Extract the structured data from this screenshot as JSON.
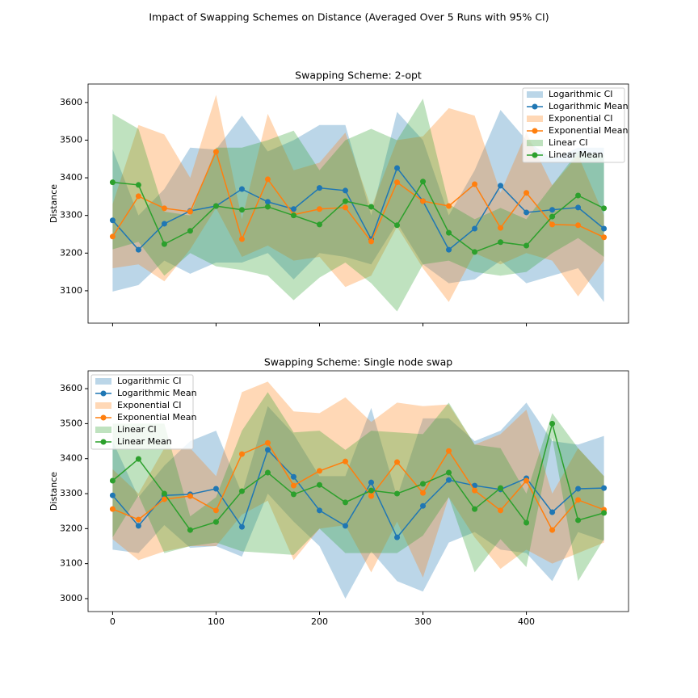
{
  "title": "Impact of Swapping Schemes on Distance (Averaged Over 5 Runs with 95% CI)",
  "chart_data": [
    {
      "type": "line",
      "title": "Swapping Scheme: 2-opt",
      "ylabel": "Distance",
      "x": [
        0,
        25,
        50,
        75,
        100,
        125,
        150,
        175,
        200,
        225,
        250,
        275,
        300,
        325,
        350,
        375,
        400,
        425,
        450,
        475
      ],
      "xlim": [
        -23.75,
        498.75
      ],
      "xticks": [
        0,
        100,
        200,
        300,
        400
      ],
      "show_xtick_labels": false,
      "ylim": [
        3014,
        3649
      ],
      "yticks": [
        3100,
        3200,
        3300,
        3400,
        3500,
        3600
      ],
      "legend": "upper right",
      "grid": false,
      "series": [
        {
          "name": "Logarithmic Mean",
          "ci_name": "Logarithmic CI",
          "color": "#1f77b4",
          "values": [
            3287,
            3209,
            3278,
            3312,
            3325,
            3370,
            3336,
            3317,
            3373,
            3366,
            3237,
            3426,
            3338,
            3209,
            3265,
            3379,
            3308,
            3315,
            3321,
            3265
          ],
          "ci_upper": [
            3476,
            3300,
            3370,
            3480,
            3475,
            3565,
            3470,
            3500,
            3540,
            3540,
            3300,
            3575,
            3500,
            3300,
            3420,
            3580,
            3500,
            3450,
            3480,
            3480
          ],
          "ci_lower": [
            3098,
            3115,
            3180,
            3145,
            3175,
            3175,
            3200,
            3130,
            3200,
            3190,
            3170,
            3280,
            3170,
            3120,
            3130,
            3180,
            3120,
            3140,
            3160,
            3070
          ]
        },
        {
          "name": "Exponential Mean",
          "ci_name": "Exponential CI",
          "color": "#ff7f0e",
          "values": [
            3244,
            3351,
            3319,
            3310,
            3469,
            3237,
            3396,
            3302,
            3317,
            3321,
            3231,
            3388,
            3338,
            3325,
            3383,
            3267,
            3360,
            3276,
            3274,
            3242
          ],
          "ci_upper": [
            3330,
            3540,
            3515,
            3400,
            3620,
            3290,
            3570,
            3420,
            3440,
            3520,
            3320,
            3500,
            3510,
            3585,
            3565,
            3360,
            3520,
            3380,
            3460,
            3300
          ],
          "ci_lower": [
            3160,
            3170,
            3125,
            3210,
            3320,
            3190,
            3220,
            3180,
            3190,
            3110,
            3140,
            3270,
            3160,
            3070,
            3200,
            3170,
            3200,
            3180,
            3085,
            3180
          ]
        },
        {
          "name": "Linear Mean",
          "ci_name": "Linear CI",
          "color": "#2ca02c",
          "values": [
            3388,
            3381,
            3224,
            3259,
            3325,
            3315,
            3323,
            3300,
            3276,
            3338,
            3323,
            3274,
            3390,
            3254,
            3203,
            3229,
            3220,
            3297,
            3353,
            3319
          ],
          "ci_upper": [
            3570,
            3530,
            3310,
            3300,
            3480,
            3480,
            3500,
            3525,
            3420,
            3500,
            3530,
            3500,
            3610,
            3330,
            3290,
            3320,
            3290,
            3380,
            3470,
            3460
          ],
          "ci_lower": [
            3210,
            3230,
            3140,
            3200,
            3165,
            3155,
            3140,
            3075,
            3135,
            3175,
            3120,
            3045,
            3170,
            3180,
            3150,
            3140,
            3150,
            3200,
            3240,
            3190
          ]
        }
      ]
    },
    {
      "type": "line",
      "title": "Swapping Scheme: Single node swap",
      "ylabel": "Distance",
      "x": [
        0,
        25,
        50,
        75,
        100,
        125,
        150,
        175,
        200,
        225,
        250,
        275,
        300,
        325,
        350,
        375,
        400,
        425,
        450,
        475
      ],
      "xlim": [
        -23.75,
        498.75
      ],
      "xticks": [
        0,
        100,
        200,
        300,
        400
      ],
      "show_xtick_labels": true,
      "ylim": [
        2963,
        3651
      ],
      "yticks": [
        3000,
        3100,
        3200,
        3300,
        3400,
        3500,
        3600
      ],
      "legend": "upper left",
      "grid": false,
      "series": [
        {
          "name": "Logarithmic Mean",
          "ci_name": "Logarithmic CI",
          "color": "#1f77b4",
          "values": [
            3295,
            3208,
            3295,
            3298,
            3314,
            3205,
            3425,
            3348,
            3252,
            3208,
            3332,
            3175,
            3265,
            3339,
            3323,
            3312,
            3344,
            3247,
            3314,
            3316
          ],
          "ci_upper": [
            3450,
            3290,
            3380,
            3450,
            3480,
            3300,
            3550,
            3470,
            3350,
            3350,
            3545,
            3290,
            3515,
            3515,
            3450,
            3480,
            3560,
            3450,
            3440,
            3465
          ],
          "ci_lower": [
            3140,
            3130,
            3210,
            3145,
            3150,
            3120,
            3300,
            3220,
            3150,
            3000,
            3135,
            3050,
            3020,
            3160,
            3190,
            3140,
            3130,
            3050,
            3190,
            3165
          ]
        },
        {
          "name": "Exponential Mean",
          "ci_name": "Exponential CI",
          "color": "#ff7f0e",
          "values": [
            3256,
            3226,
            3284,
            3293,
            3252,
            3413,
            3445,
            3323,
            3365,
            3392,
            3293,
            3390,
            3302,
            3422,
            3309,
            3252,
            3337,
            3196,
            3282,
            3254
          ],
          "ci_upper": [
            3370,
            3300,
            3430,
            3430,
            3350,
            3590,
            3620,
            3535,
            3530,
            3575,
            3505,
            3560,
            3550,
            3555,
            3440,
            3470,
            3540,
            3300,
            3430,
            3350
          ],
          "ci_lower": [
            3170,
            3110,
            3135,
            3150,
            3150,
            3240,
            3280,
            3110,
            3200,
            3210,
            3075,
            3220,
            3060,
            3290,
            3175,
            3085,
            3140,
            3100,
            3130,
            3160
          ]
        },
        {
          "name": "Linear Mean",
          "ci_name": "Linear CI",
          "color": "#2ca02c",
          "values": [
            3337,
            3399,
            3300,
            3196,
            3219,
            3307,
            3360,
            3298,
            3325,
            3275,
            3309,
            3300,
            3328,
            3360,
            3256,
            3316,
            3217,
            3500,
            3224,
            3245
          ],
          "ci_upper": [
            3500,
            3500,
            3500,
            3235,
            3290,
            3480,
            3590,
            3475,
            3480,
            3425,
            3480,
            3475,
            3470,
            3560,
            3440,
            3430,
            3300,
            3530,
            3430,
            3350
          ],
          "ci_lower": [
            3175,
            3295,
            3130,
            3150,
            3160,
            3135,
            3130,
            3125,
            3200,
            3130,
            3130,
            3130,
            3180,
            3290,
            3075,
            3170,
            3090,
            3460,
            3050,
            3170
          ]
        }
      ]
    }
  ]
}
